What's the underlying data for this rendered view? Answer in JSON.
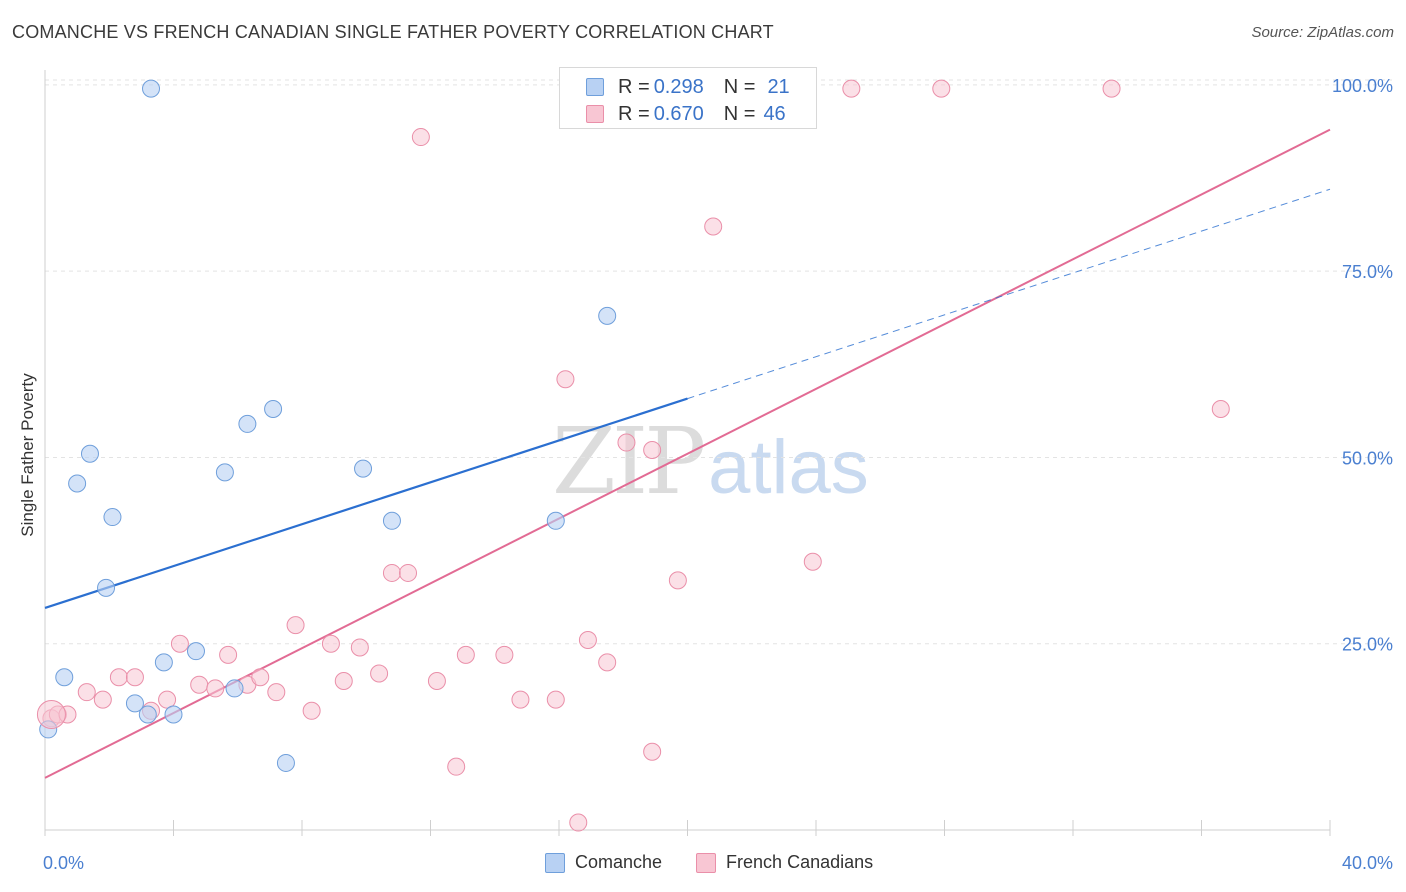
{
  "header": {
    "title": "COMANCHE VS FRENCH CANADIAN SINGLE FATHER POVERTY CORRELATION CHART",
    "source": "Source: ZipAtlas.com"
  },
  "watermark": {
    "zip": "ZIP",
    "atlas": "atlas"
  },
  "legend_top": {
    "rows": [
      {
        "r_label": "R = ",
        "r_value": "0.298",
        "n_label": "N = ",
        "n_value": "21"
      },
      {
        "r_label": "R = ",
        "r_value": "0.670",
        "n_label": "N = ",
        "n_value": "46"
      }
    ]
  },
  "legend_bottom": {
    "series_a": "Comanche",
    "series_b": "French Canadians"
  },
  "colors": {
    "comanche_fill": "#b8d1f3",
    "comanche_stroke": "#6f9fdb",
    "comanche_line": "#2b6fd0",
    "french_fill": "#f8c6d3",
    "french_stroke": "#ea8fa9",
    "french_line": "#e26b94",
    "tick_text": "#4a7fd0",
    "grid": "#e3e3e3"
  },
  "chart_data": {
    "type": "scatter",
    "title": "COMANCHE VS FRENCH CANADIAN SINGLE FATHER POVERTY CORRELATION CHART",
    "ylabel": "Single Father Poverty",
    "xlabel": "",
    "xlim": [
      0,
      40
    ],
    "ylim": [
      0,
      102
    ],
    "x_ticks": [
      "0.0%",
      "40.0%"
    ],
    "y_ticks": [
      {
        "value": 25,
        "label": "25.0%"
      },
      {
        "value": 50,
        "label": "50.0%"
      },
      {
        "value": 75,
        "label": "75.0%"
      },
      {
        "value": 100,
        "label": "100.0%"
      }
    ],
    "grid": true,
    "series": [
      {
        "name": "Comanche",
        "stats": {
          "R": 0.298,
          "N": 21
        },
        "points": [
          [
            0.1,
            13.5
          ],
          [
            0.6,
            20.5
          ],
          [
            1.0,
            46.5
          ],
          [
            1.4,
            50.5
          ],
          [
            2.1,
            42.0
          ],
          [
            1.9,
            32.5
          ],
          [
            2.8,
            17.0
          ],
          [
            3.2,
            15.5
          ],
          [
            3.3,
            99.5
          ],
          [
            3.7,
            22.5
          ],
          [
            4.0,
            15.5
          ],
          [
            4.7,
            24.0
          ],
          [
            5.6,
            48.0
          ],
          [
            5.9,
            19.0
          ],
          [
            6.3,
            54.5
          ],
          [
            7.1,
            56.5
          ],
          [
            7.5,
            9.0
          ],
          [
            9.9,
            48.5
          ],
          [
            10.8,
            41.5
          ],
          [
            15.9,
            41.5
          ],
          [
            17.5,
            69.0
          ]
        ],
        "trend": {
          "x": [
            0,
            20
          ],
          "y": [
            29.8,
            57.9
          ]
        },
        "trend_dashed": {
          "x": [
            20,
            40
          ],
          "y": [
            57.9,
            86.0
          ]
        }
      },
      {
        "name": "French Canadians",
        "stats": {
          "R": 0.67,
          "N": 46
        },
        "points": [
          [
            0.2,
            15.0
          ],
          [
            0.4,
            15.5
          ],
          [
            0.7,
            15.5
          ],
          [
            1.3,
            18.5
          ],
          [
            1.8,
            17.5
          ],
          [
            2.3,
            20.5
          ],
          [
            2.8,
            20.5
          ],
          [
            3.3,
            16.0
          ],
          [
            3.8,
            17.5
          ],
          [
            4.2,
            25.0
          ],
          [
            4.8,
            19.5
          ],
          [
            5.3,
            19.0
          ],
          [
            5.7,
            23.5
          ],
          [
            6.3,
            19.5
          ],
          [
            6.7,
            20.5
          ],
          [
            7.2,
            18.5
          ],
          [
            7.8,
            27.5
          ],
          [
            8.3,
            16.0
          ],
          [
            8.9,
            25.0
          ],
          [
            9.3,
            20.0
          ],
          [
            9.8,
            24.5
          ],
          [
            10.4,
            21.0
          ],
          [
            10.8,
            34.5
          ],
          [
            11.3,
            34.5
          ],
          [
            11.7,
            93.0
          ],
          [
            12.2,
            20.0
          ],
          [
            12.8,
            8.5
          ],
          [
            13.1,
            23.5
          ],
          [
            14.3,
            23.5
          ],
          [
            14.8,
            17.5
          ],
          [
            15.9,
            17.5
          ],
          [
            16.2,
            60.5
          ],
          [
            16.6,
            1.0
          ],
          [
            16.9,
            25.5
          ],
          [
            17.5,
            22.5
          ],
          [
            18.1,
            52.0
          ],
          [
            18.9,
            10.5
          ],
          [
            18.9,
            51.0
          ],
          [
            19.7,
            33.5
          ],
          [
            20.8,
            81.0
          ],
          [
            23.6,
            99.5
          ],
          [
            23.9,
            36.0
          ],
          [
            25.1,
            99.5
          ],
          [
            27.9,
            99.5
          ],
          [
            33.2,
            99.5
          ],
          [
            36.6,
            56.5
          ]
        ],
        "trend": {
          "x": [
            0,
            40
          ],
          "y": [
            7.0,
            94.0
          ]
        }
      }
    ]
  }
}
